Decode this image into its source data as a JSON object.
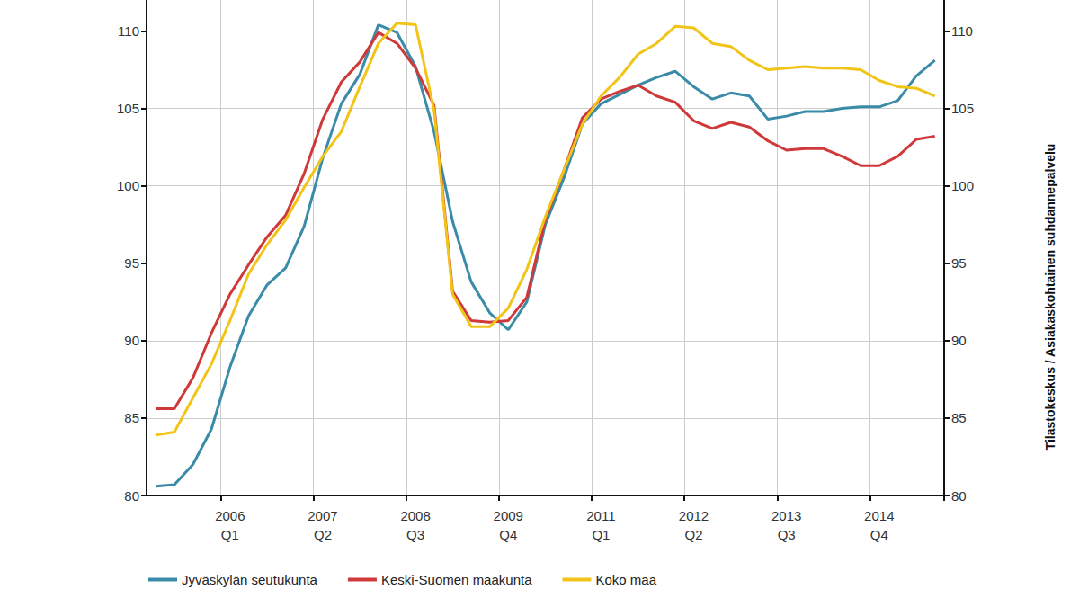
{
  "chart_data": {
    "type": "line",
    "categories": [
      null,
      null,
      null,
      null,
      "2006\nQ1",
      null,
      null,
      null,
      null,
      "2007\nQ2",
      null,
      null,
      null,
      null,
      "2008\nQ3",
      null,
      null,
      null,
      null,
      "2009\nQ4",
      null,
      null,
      null,
      null,
      "2011\nQ1",
      null,
      null,
      null,
      null,
      "2012\nQ2",
      null,
      null,
      null,
      null,
      "2013\nQ3",
      null,
      null,
      null,
      null,
      "2014\nQ4",
      null,
      null,
      null
    ],
    "series": [
      {
        "name": "Jyväskylän seutukunta",
        "color": "#3a8ba8",
        "values": [
          80.6,
          80.7,
          82.0,
          84.3,
          88.3,
          91.6,
          93.6,
          94.7,
          97.4,
          101.8,
          105.3,
          107.2,
          110.4,
          109.9,
          107.7,
          103.5,
          97.7,
          93.8,
          91.8,
          90.7,
          92.5,
          97.5,
          100.5,
          104.0,
          105.3,
          105.9,
          106.5,
          107.0,
          107.4,
          106.4,
          105.6,
          106.0,
          105.8,
          104.3,
          104.5,
          104.8,
          104.8,
          105.0,
          105.1,
          105.1,
          105.5,
          107.1,
          108.1
        ]
      },
      {
        "name": "Keski-Suomen maakunta",
        "color": "#d0393a",
        "values": [
          85.6,
          85.6,
          87.6,
          90.5,
          93.0,
          94.9,
          96.7,
          98.1,
          100.8,
          104.3,
          106.7,
          108.0,
          109.9,
          109.2,
          107.6,
          105.2,
          93.2,
          91.3,
          91.2,
          91.3,
          92.8,
          97.8,
          101.0,
          104.4,
          105.6,
          106.1,
          106.5,
          105.8,
          105.4,
          104.2,
          103.7,
          104.1,
          103.8,
          102.9,
          102.3,
          102.4,
          102.4,
          101.9,
          101.3,
          101.3,
          101.9,
          103.0,
          103.2
        ]
      },
      {
        "name": "Koko maa",
        "color": "#f2c418",
        "values": [
          83.9,
          84.1,
          86.3,
          88.5,
          91.3,
          94.3,
          96.2,
          97.8,
          99.9,
          101.9,
          103.5,
          106.4,
          109.2,
          110.5,
          110.4,
          104.9,
          93.0,
          90.9,
          90.9,
          92.1,
          94.6,
          98.0,
          101.0,
          104.0,
          105.8,
          107.0,
          108.5,
          109.2,
          110.3,
          110.2,
          109.2,
          109.0,
          108.1,
          107.5,
          107.6,
          107.7,
          107.6,
          107.6,
          107.5,
          106.8,
          106.4,
          106.3,
          105.8
        ]
      }
    ],
    "ylim": [
      80,
      112
    ],
    "yticks": [
      80,
      85,
      90,
      95,
      100,
      105,
      110
    ],
    "y2lim": [
      80,
      112
    ],
    "y2ticks": [
      80,
      85,
      90,
      95,
      100,
      105,
      110
    ],
    "annotation": "Tilastokeskus / Asiakaskohtainen suhdannepalvelu",
    "grid": true,
    "legend": "bottom-left"
  }
}
